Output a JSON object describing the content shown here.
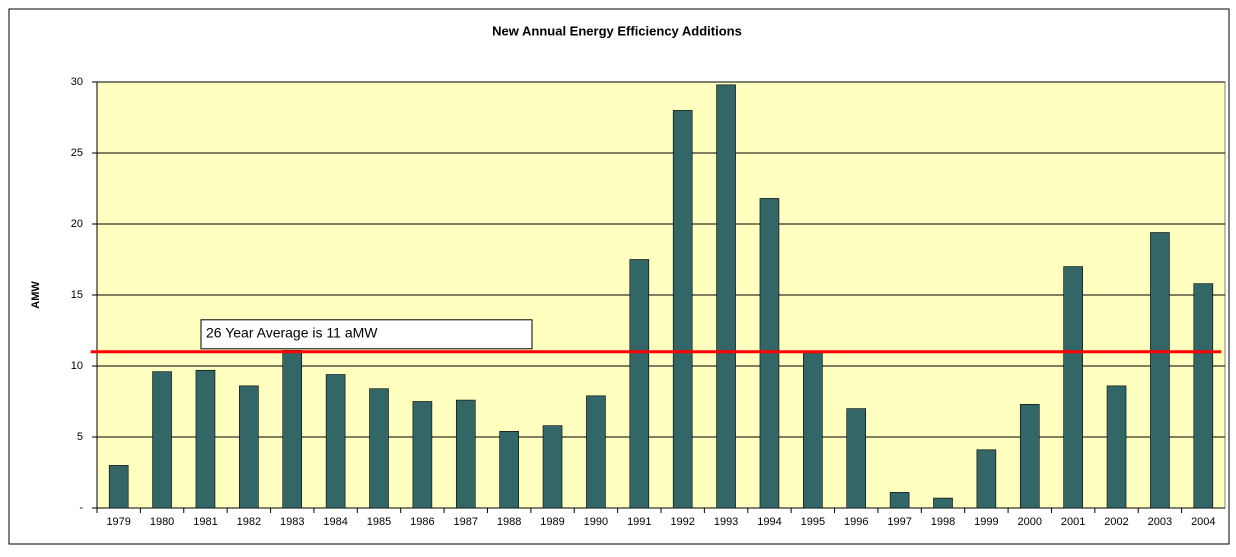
{
  "chart_data": {
    "type": "bar",
    "title": "New Annual Energy Efficiency Additions",
    "y_label": "AMW",
    "categories": [
      "1979",
      "1980",
      "1981",
      "1982",
      "1983",
      "1984",
      "1985",
      "1986",
      "1987",
      "1988",
      "1989",
      "1990",
      "1991",
      "1992",
      "1993",
      "1994",
      "1995",
      "1996",
      "1997",
      "1998",
      "1999",
      "2000",
      "2001",
      "2002",
      "2003",
      "2004"
    ],
    "values": [
      3.0,
      9.6,
      9.7,
      8.6,
      11.1,
      9.4,
      8.4,
      7.5,
      7.6,
      5.4,
      5.8,
      7.9,
      17.5,
      28.0,
      29.8,
      21.8,
      11.0,
      7.0,
      1.1,
      0.7,
      4.1,
      7.3,
      17.0,
      8.6,
      19.4,
      15.8
    ],
    "color": "#336666",
    "ylim": [
      0,
      30
    ],
    "yticks": [
      {
        "value": 0,
        "label": "-"
      },
      5,
      10,
      15,
      20,
      25,
      30
    ],
    "grid": true,
    "reference_line": {
      "value": 11,
      "color": "#ff0000",
      "label": "26 Year Average is 11 aMW"
    }
  }
}
